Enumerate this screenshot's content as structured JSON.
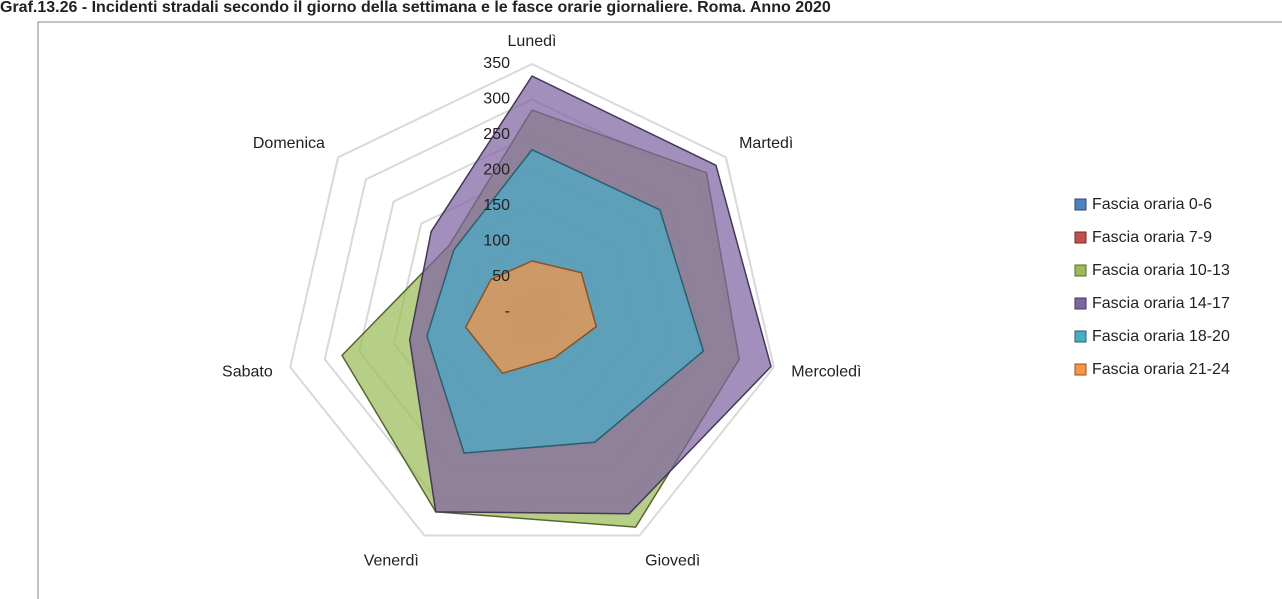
{
  "chart_data": {
    "type": "radar",
    "title": "Graf.13.26 - Incidenti stradali secondo il giorno della settimana e le fasce orarie giornaliere. Roma. Anno 2020",
    "categories": [
      "Lunedì",
      "Martedì",
      "Mercoledì",
      "Giovedì",
      "Venerdì",
      "Sabato",
      "Domenica"
    ],
    "series": [
      {
        "name": "Fascia oraria 0-6",
        "color": "#4f81bd",
        "values": [
          20,
          22,
          25,
          20,
          24,
          40,
          35
        ]
      },
      {
        "name": "Fascia oraria 7-9",
        "color": "#c0504d",
        "values": [
          40,
          50,
          52,
          48,
          55,
          30,
          25
        ]
      },
      {
        "name": "Fascia oraria 10-13",
        "color": "#9bbb59",
        "values": [
          285,
          315,
          300,
          337,
          313,
          275,
          150
        ]
      },
      {
        "name": "Fascia oraria 14-17",
        "color": "#8064a2",
        "values": [
          333,
          332,
          346,
          316,
          313,
          177,
          182
        ]
      },
      {
        "name": "Fascia oraria 18-20",
        "color": "#4bacc6",
        "values": [
          229,
          231,
          248,
          204,
          221,
          152,
          141
        ]
      },
      {
        "name": "Fascia oraria 21-24",
        "color": "#f79646",
        "values": [
          72,
          89,
          93,
          72,
          96,
          96,
          74
        ]
      }
    ],
    "ylim": [
      0,
      350
    ],
    "yticks": [
      {
        "value": 0,
        "label": "-"
      },
      50,
      100,
      150,
      200,
      250,
      300,
      350
    ],
    "grid": true,
    "legend": "right"
  }
}
